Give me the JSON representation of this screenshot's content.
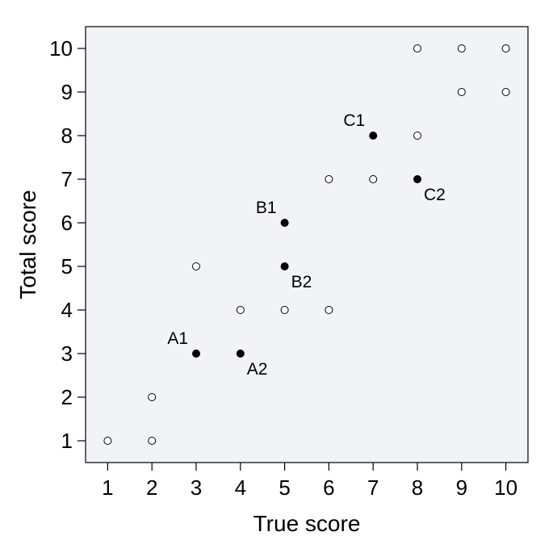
{
  "chart_data": {
    "type": "scatter",
    "x_label": "True score",
    "y_label": "Total score",
    "xlim": [
      0.5,
      10.5
    ],
    "ylim": [
      0.5,
      10.5
    ],
    "xticks": [
      1,
      2,
      3,
      4,
      5,
      6,
      7,
      8,
      9,
      10
    ],
    "yticks": [
      1,
      2,
      3,
      4,
      5,
      6,
      7,
      8,
      9,
      10
    ],
    "background": "#f1f3f6",
    "series": [
      {
        "color": "#000000",
        "marker": "open",
        "x": [
          1,
          2,
          2,
          3,
          4,
          5,
          6,
          6,
          7,
          8,
          8,
          9,
          10,
          9,
          10
        ],
        "values": [
          1,
          1,
          2,
          5,
          4,
          4,
          4,
          7,
          7,
          8,
          10,
          10,
          10,
          9,
          9
        ]
      },
      {
        "color": "#000000",
        "marker": "filled",
        "x": [
          3,
          4,
          5,
          5,
          7,
          8
        ],
        "values": [
          3,
          3,
          6,
          5,
          8,
          7
        ],
        "labels": [
          "A1",
          "A2",
          "B1",
          "B2",
          "C1",
          "C2"
        ]
      }
    ]
  }
}
